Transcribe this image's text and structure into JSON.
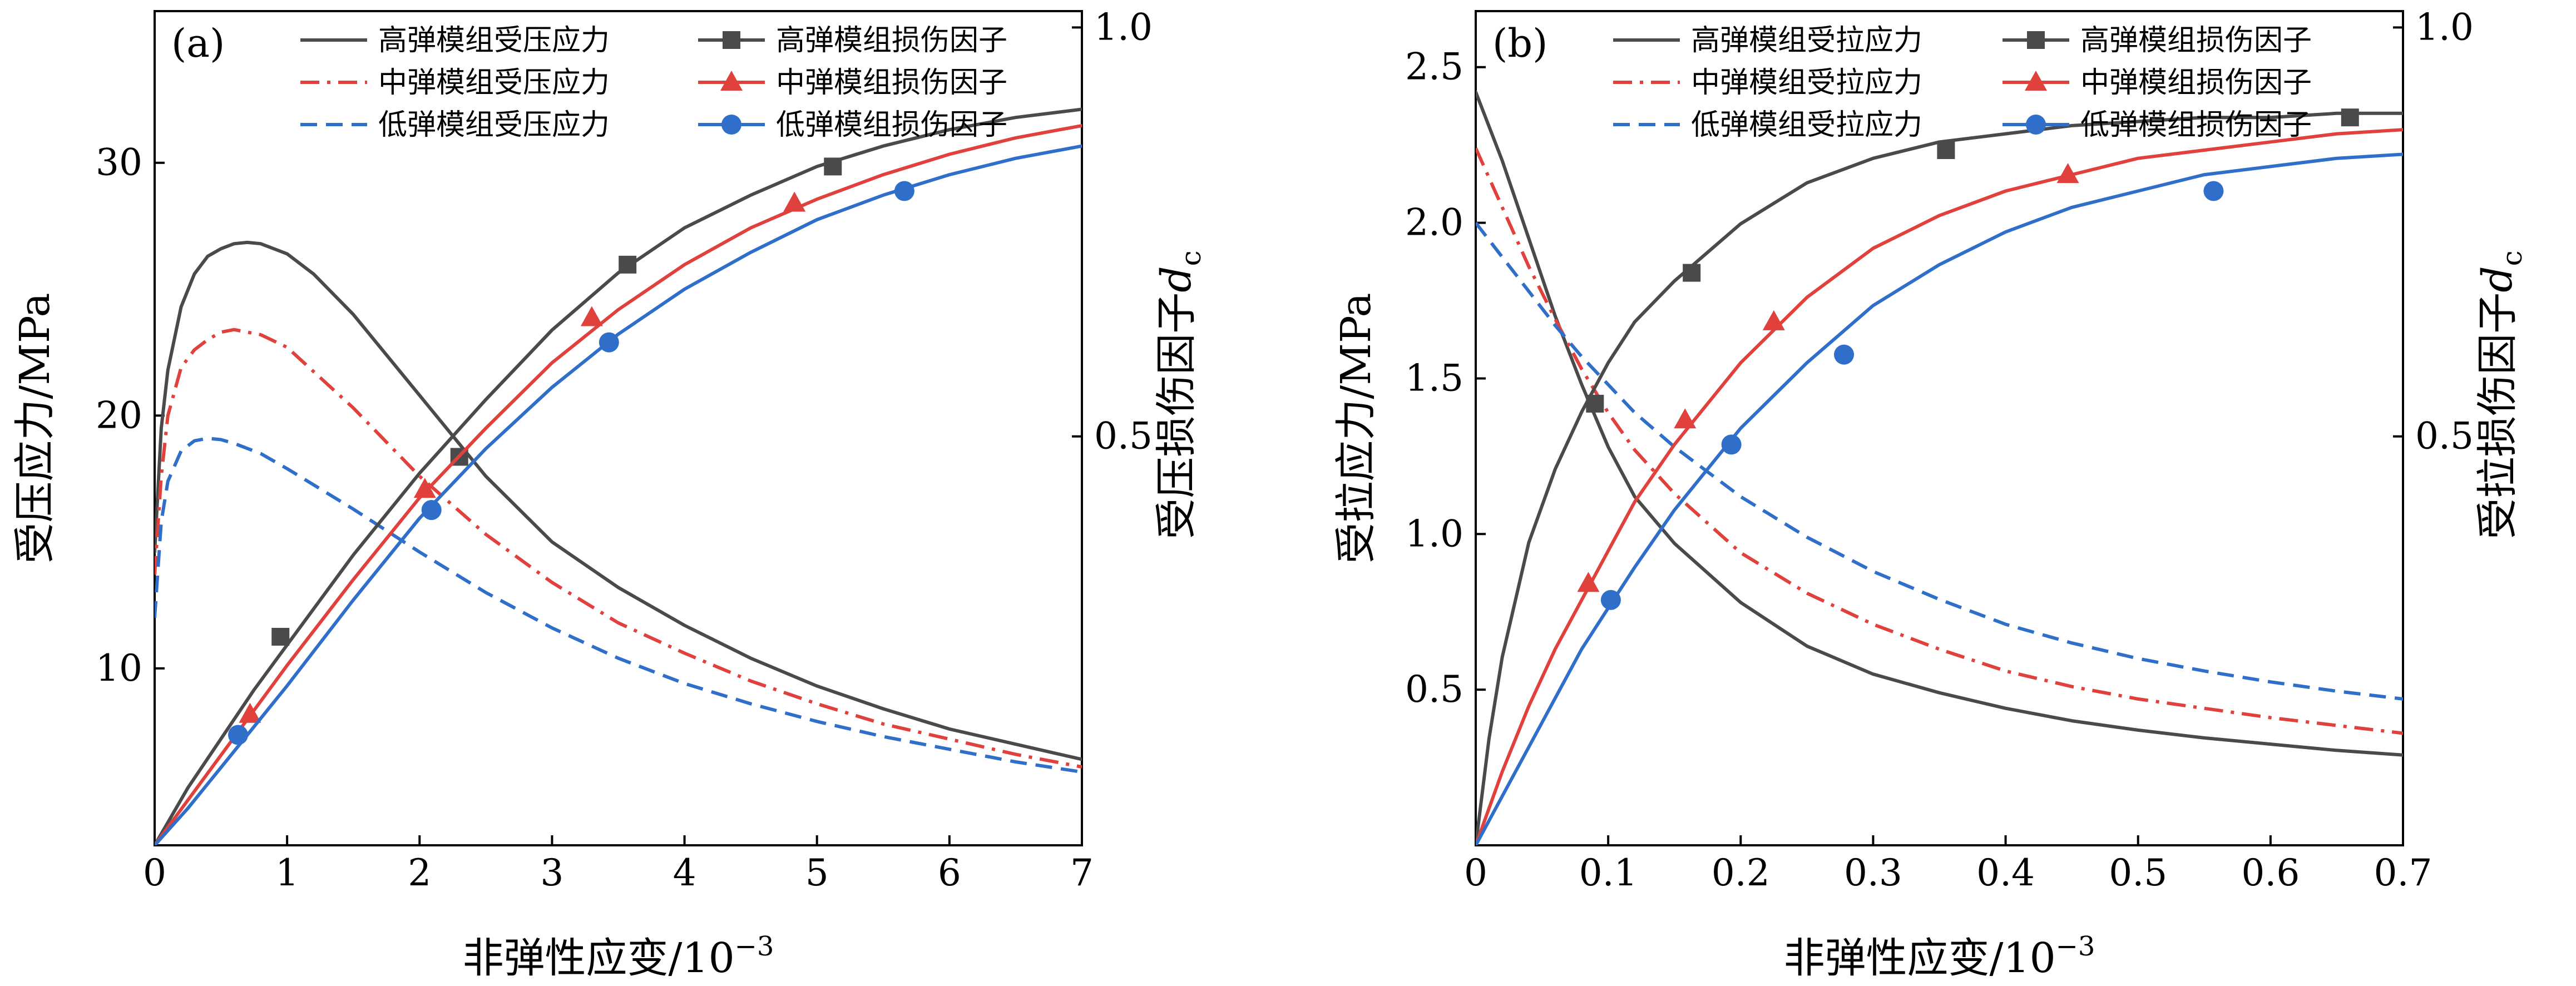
{
  "chart_data": [
    {
      "type": "line",
      "panel_label": "(a)",
      "xlabel": "非弹性应变/10",
      "xlabel_exponent": "−3",
      "ylabel": "受压应力/MPa",
      "y2label": "受压损伤因子",
      "y2label_symbol": "d",
      "y2label_subscript": "c",
      "xlim": [
        0,
        7
      ],
      "ylim": [
        3,
        36
      ],
      "y2lim": [
        0,
        1.02
      ],
      "x_ticks": [
        0,
        1,
        2,
        3,
        4,
        5,
        6,
        7
      ],
      "x_tick_labels": [
        "0",
        "1",
        "2",
        "3",
        "4",
        "5",
        "6",
        "7"
      ],
      "y_ticks": [
        10,
        20,
        30
      ],
      "y_tick_labels": [
        "10",
        "20",
        "30"
      ],
      "y2_ticks": [
        0.5,
        1.0
      ],
      "y2_tick_labels": [
        "0.5",
        "1.0"
      ],
      "legend_position": "top",
      "series": [
        {
          "name": "高弹模组受压应力",
          "axis": "left",
          "color": "#4a4a4a",
          "dash": "solid",
          "marker": "none",
          "x": [
            0,
            0.05,
            0.1,
            0.2,
            0.3,
            0.4,
            0.5,
            0.6,
            0.7,
            0.8,
            1.0,
            1.2,
            1.5,
            2.0,
            2.5,
            3.0,
            3.5,
            4.0,
            4.5,
            5.0,
            5.5,
            6.0,
            6.5,
            7.0
          ],
          "y": [
            14.6,
            19.5,
            21.8,
            24.3,
            25.6,
            26.3,
            26.6,
            26.8,
            26.85,
            26.8,
            26.4,
            25.6,
            24.0,
            20.8,
            17.6,
            15.0,
            13.2,
            11.7,
            10.4,
            9.3,
            8.4,
            7.6,
            7.0,
            6.4
          ]
        },
        {
          "name": "中弹模组受压应力",
          "axis": "left",
          "color": "#e0413c",
          "dash": "dashdot",
          "marker": "none",
          "x": [
            0,
            0.05,
            0.1,
            0.2,
            0.3,
            0.4,
            0.5,
            0.6,
            0.8,
            1.0,
            1.5,
            2.0,
            2.5,
            3.0,
            3.5,
            4.0,
            4.5,
            5.0,
            5.5,
            6.0,
            6.5,
            7.0
          ],
          "y": [
            13.7,
            17.6,
            20.0,
            21.9,
            22.6,
            23.0,
            23.3,
            23.4,
            23.2,
            22.7,
            20.3,
            17.6,
            15.3,
            13.4,
            11.8,
            10.6,
            9.5,
            8.6,
            7.8,
            7.2,
            6.6,
            6.1
          ]
        },
        {
          "name": "低弹模组受压应力",
          "axis": "left",
          "color": "#2f6fc9",
          "dash": "dashed",
          "marker": "none",
          "x": [
            0,
            0.05,
            0.1,
            0.2,
            0.3,
            0.4,
            0.5,
            0.6,
            0.8,
            1.0,
            1.5,
            2.0,
            2.5,
            3.0,
            3.5,
            4.0,
            4.5,
            5.0,
            5.5,
            6.0,
            6.5,
            7.0
          ],
          "y": [
            12.0,
            15.8,
            17.4,
            18.6,
            19.0,
            19.1,
            19.05,
            18.9,
            18.5,
            17.9,
            16.3,
            14.6,
            13.0,
            11.6,
            10.4,
            9.4,
            8.6,
            7.9,
            7.3,
            6.8,
            6.3,
            5.9
          ]
        },
        {
          "name": "高弹模组损伤因子",
          "axis": "right",
          "color": "#4a4a4a",
          "dash": "solid",
          "marker": "square",
          "x": [
            0,
            0.25,
            0.5,
            0.75,
            1.0,
            1.5,
            2.0,
            2.5,
            3.0,
            3.5,
            4.0,
            4.5,
            5.0,
            5.5,
            6.0,
            6.5,
            7.0
          ],
          "y": [
            0.0,
            0.07,
            0.13,
            0.19,
            0.245,
            0.355,
            0.455,
            0.545,
            0.63,
            0.7,
            0.755,
            0.795,
            0.83,
            0.855,
            0.875,
            0.89,
            0.9
          ],
          "marker_x": [
            0.95,
            2.3,
            3.57,
            5.12
          ],
          "marker_y": [
            0.255,
            0.475,
            0.71,
            0.83
          ]
        },
        {
          "name": "中弹模组损伤因子",
          "axis": "right",
          "color": "#e0413c",
          "dash": "solid",
          "marker": "triangle",
          "x": [
            0,
            0.25,
            0.5,
            0.75,
            1.0,
            1.5,
            2.0,
            2.5,
            3.0,
            3.5,
            4.0,
            4.5,
            5.0,
            5.5,
            6.0,
            6.5,
            7.0
          ],
          "y": [
            0.0,
            0.055,
            0.11,
            0.165,
            0.22,
            0.325,
            0.425,
            0.51,
            0.59,
            0.655,
            0.71,
            0.755,
            0.79,
            0.82,
            0.845,
            0.865,
            0.88
          ],
          "marker_x": [
            0.72,
            2.04,
            3.3,
            4.83
          ],
          "marker_y": [
            0.16,
            0.435,
            0.645,
            0.785
          ]
        },
        {
          "name": "低弹模组损伤因子",
          "axis": "right",
          "color": "#2f6fc9",
          "dash": "solid",
          "marker": "circle",
          "x": [
            0,
            0.25,
            0.5,
            0.75,
            1.0,
            1.5,
            2.0,
            2.5,
            3.0,
            3.5,
            4.0,
            4.5,
            5.0,
            5.5,
            6.0,
            6.5,
            7.0
          ],
          "y": [
            0.0,
            0.045,
            0.095,
            0.145,
            0.195,
            0.3,
            0.4,
            0.485,
            0.56,
            0.625,
            0.68,
            0.725,
            0.765,
            0.795,
            0.82,
            0.84,
            0.855
          ],
          "marker_x": [
            0.63,
            2.09,
            3.43,
            5.66
          ],
          "marker_y": [
            0.135,
            0.41,
            0.615,
            0.8
          ]
        }
      ]
    },
    {
      "type": "line",
      "panel_label": "(b)",
      "xlabel": "非弹性应变/10",
      "xlabel_exponent": "−3",
      "ylabel": "受拉应力/MPa",
      "y2label": "受拉损伤因子",
      "y2label_symbol": "d",
      "y2label_subscript": "c",
      "xlim": [
        0,
        0.7
      ],
      "ylim": [
        0,
        2.68
      ],
      "y2lim": [
        0,
        1.02
      ],
      "x_ticks": [
        0,
        0.1,
        0.2,
        0.3,
        0.4,
        0.5,
        0.6,
        0.7
      ],
      "x_tick_labels": [
        "0",
        "0.1",
        "0.2",
        "0.3",
        "0.4",
        "0.5",
        "0.6",
        "0.7"
      ],
      "y_ticks": [
        0.5,
        1.0,
        1.5,
        2.0,
        2.5
      ],
      "y_tick_labels": [
        "0.5",
        "1.0",
        "1.5",
        "2.0",
        "2.5"
      ],
      "y2_ticks": [
        0.5,
        1.0
      ],
      "y2_tick_labels": [
        "0.5",
        "1.0"
      ],
      "legend_position": "top",
      "series": [
        {
          "name": "高弹模组受拉应力",
          "axis": "left",
          "color": "#4a4a4a",
          "dash": "solid",
          "marker": "none",
          "x": [
            0,
            0.02,
            0.04,
            0.06,
            0.08,
            0.1,
            0.12,
            0.15,
            0.2,
            0.25,
            0.3,
            0.35,
            0.4,
            0.45,
            0.5,
            0.55,
            0.6,
            0.65,
            0.7
          ],
          "y": [
            2.42,
            2.2,
            1.95,
            1.7,
            1.48,
            1.28,
            1.12,
            0.97,
            0.78,
            0.64,
            0.55,
            0.49,
            0.44,
            0.4,
            0.37,
            0.345,
            0.325,
            0.305,
            0.29
          ]
        },
        {
          "name": "中弹模组受拉应力",
          "axis": "left",
          "color": "#e0413c",
          "dash": "dashdot",
          "marker": "none",
          "x": [
            0,
            0.02,
            0.04,
            0.06,
            0.08,
            0.1,
            0.12,
            0.15,
            0.2,
            0.25,
            0.3,
            0.35,
            0.4,
            0.45,
            0.5,
            0.55,
            0.6,
            0.65,
            0.7
          ],
          "y": [
            2.24,
            2.05,
            1.86,
            1.69,
            1.53,
            1.39,
            1.27,
            1.13,
            0.94,
            0.81,
            0.71,
            0.63,
            0.56,
            0.51,
            0.47,
            0.44,
            0.41,
            0.385,
            0.36
          ]
        },
        {
          "name": "低弹模组受拉应力",
          "axis": "left",
          "color": "#2f6fc9",
          "dash": "dashed",
          "marker": "none",
          "x": [
            0,
            0.02,
            0.04,
            0.06,
            0.08,
            0.1,
            0.12,
            0.15,
            0.2,
            0.25,
            0.3,
            0.35,
            0.4,
            0.45,
            0.5,
            0.55,
            0.6,
            0.65,
            0.7
          ],
          "y": [
            2.0,
            1.89,
            1.78,
            1.67,
            1.57,
            1.48,
            1.39,
            1.28,
            1.12,
            0.99,
            0.88,
            0.79,
            0.71,
            0.65,
            0.6,
            0.56,
            0.525,
            0.495,
            0.47
          ]
        },
        {
          "name": "高弹模组损伤因子",
          "axis": "right",
          "color": "#4a4a4a",
          "dash": "solid",
          "marker": "square",
          "x": [
            0,
            0.01,
            0.02,
            0.04,
            0.06,
            0.08,
            0.1,
            0.12,
            0.15,
            0.2,
            0.25,
            0.3,
            0.35,
            0.4,
            0.45,
            0.5,
            0.55,
            0.6,
            0.65,
            0.7
          ],
          "y": [
            0.0,
            0.13,
            0.23,
            0.37,
            0.46,
            0.53,
            0.59,
            0.64,
            0.69,
            0.76,
            0.81,
            0.84,
            0.86,
            0.87,
            0.88,
            0.885,
            0.89,
            0.89,
            0.895,
            0.895
          ],
          "marker_x": [
            0.09,
            0.163,
            0.355,
            0.66
          ],
          "marker_y": [
            0.54,
            0.7,
            0.85,
            0.89
          ]
        },
        {
          "name": "中弹模组损伤因子",
          "axis": "right",
          "color": "#e0413c",
          "dash": "solid",
          "marker": "triangle",
          "x": [
            0,
            0.02,
            0.04,
            0.06,
            0.08,
            0.1,
            0.12,
            0.15,
            0.2,
            0.25,
            0.3,
            0.35,
            0.4,
            0.45,
            0.5,
            0.55,
            0.6,
            0.65,
            0.7
          ],
          "y": [
            0.0,
            0.09,
            0.17,
            0.24,
            0.3,
            0.36,
            0.42,
            0.49,
            0.59,
            0.67,
            0.73,
            0.77,
            0.8,
            0.82,
            0.84,
            0.85,
            0.86,
            0.87,
            0.875
          ],
          "marker_x": [
            0.085,
            0.158,
            0.225,
            0.447
          ],
          "marker_y": [
            0.32,
            0.52,
            0.64,
            0.82
          ]
        },
        {
          "name": "低弹模组损伤因子",
          "axis": "right",
          "color": "#2f6fc9",
          "dash": "solid",
          "marker": "circle",
          "x": [
            0,
            0.02,
            0.04,
            0.06,
            0.08,
            0.1,
            0.12,
            0.15,
            0.2,
            0.25,
            0.3,
            0.35,
            0.4,
            0.45,
            0.5,
            0.55,
            0.6,
            0.65,
            0.7
          ],
          "y": [
            0.0,
            0.06,
            0.12,
            0.18,
            0.24,
            0.29,
            0.34,
            0.41,
            0.51,
            0.59,
            0.66,
            0.71,
            0.75,
            0.78,
            0.8,
            0.82,
            0.83,
            0.84,
            0.845
          ],
          "marker_x": [
            0.102,
            0.193,
            0.278,
            0.557
          ],
          "marker_y": [
            0.3,
            0.49,
            0.6,
            0.8
          ]
        }
      ]
    }
  ]
}
